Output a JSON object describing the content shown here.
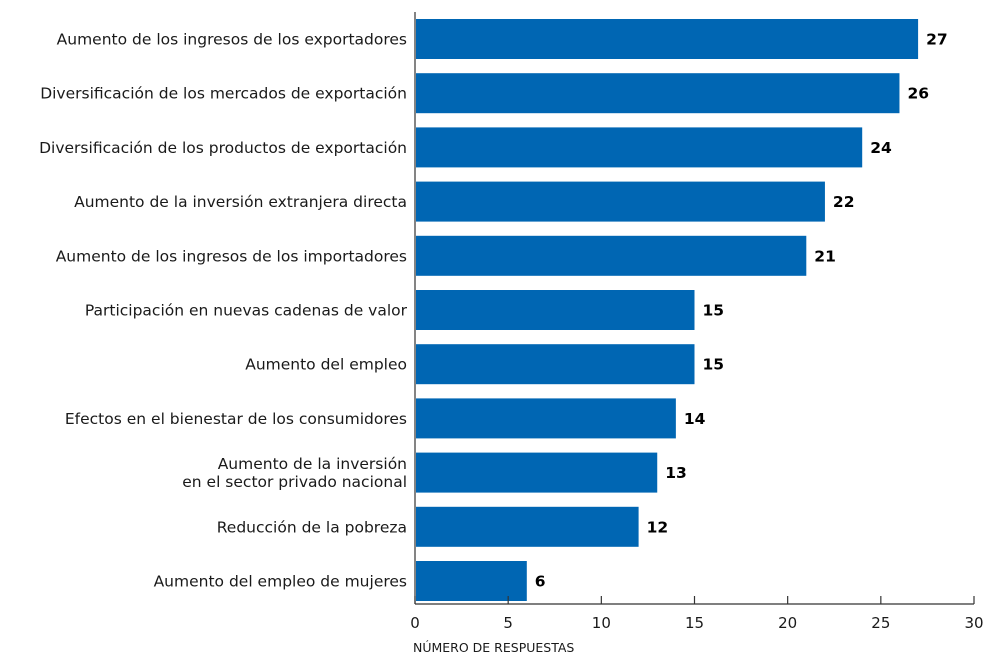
{
  "chart_data": {
    "type": "bar",
    "orientation": "horizontal",
    "categories": [
      [
        "Aumento de los ingresos de los exportadores"
      ],
      [
        "Diversificación de los mercados de exportación"
      ],
      [
        "Diversificación de los productos de exportación"
      ],
      [
        "Aumento de la inversión extranjera directa"
      ],
      [
        "Aumento de los ingresos de los importadores"
      ],
      [
        "Participación en nuevas cadenas de valor"
      ],
      [
        "Aumento del empleo"
      ],
      [
        "Efectos en el bienestar de los consumidores"
      ],
      [
        "Aumento de la inversión",
        "en el sector privado nacional"
      ],
      [
        "Reducción de la pobreza"
      ],
      [
        "Aumento del empleo de mujeres"
      ]
    ],
    "values": [
      27,
      26,
      24,
      22,
      21,
      15,
      15,
      14,
      13,
      12,
      6
    ],
    "value_labels": [
      "27",
      "26",
      "24",
      "22",
      "21",
      "15",
      "15",
      "14",
      "13",
      "12",
      "6"
    ],
    "xlabel": "NÚMERO DE RESPUESTAS",
    "xlim": [
      0,
      30
    ],
    "xticks": [
      0,
      5,
      10,
      15,
      20,
      25,
      30
    ],
    "xtick_labels": [
      "0",
      "5",
      "10",
      "15",
      "20",
      "25",
      "30"
    ],
    "grid": false,
    "bar_color": "#0066b3",
    "axis_color": "#333333"
  }
}
